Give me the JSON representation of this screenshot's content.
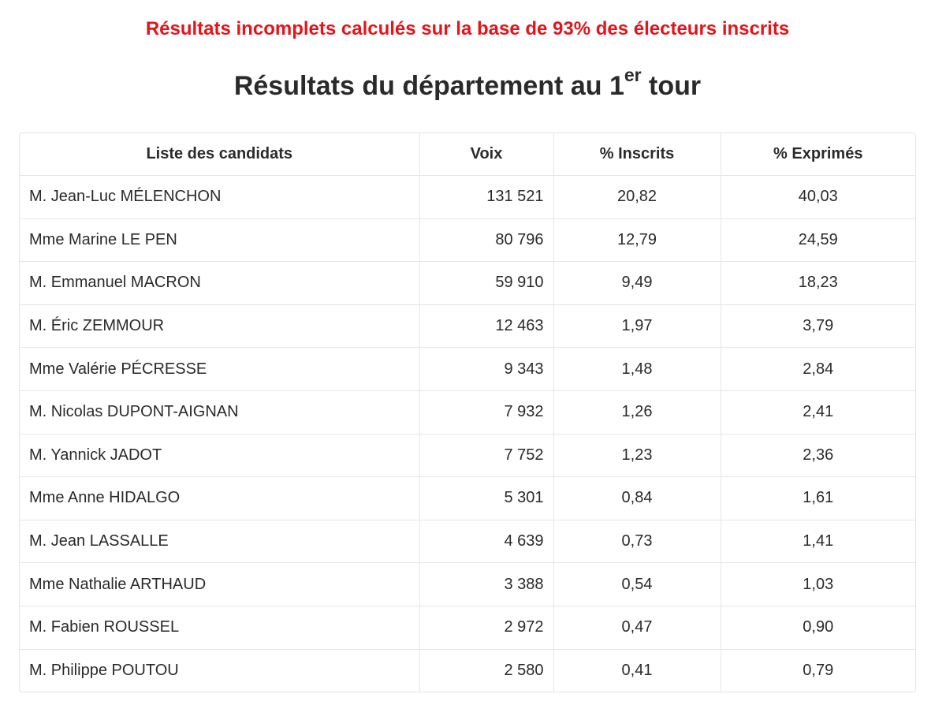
{
  "notice": "Résultats incomplets calculés sur la base de 93% des électeurs inscrits",
  "title": {
    "main": "Résultats du département au 1",
    "sup": "er",
    "end": " tour"
  },
  "table": {
    "headers": {
      "candidate": "Liste des candidats",
      "votes": "Voix",
      "pct_registered": "% Inscrits",
      "pct_cast": "% Exprimés"
    },
    "rows": [
      {
        "name": "M. Jean-Luc MÉLENCHON",
        "votes": "131 521",
        "pct_registered": "20,82",
        "pct_cast": "40,03"
      },
      {
        "name": "Mme Marine LE PEN",
        "votes": "80 796",
        "pct_registered": "12,79",
        "pct_cast": "24,59"
      },
      {
        "name": "M. Emmanuel MACRON",
        "votes": "59 910",
        "pct_registered": "9,49",
        "pct_cast": "18,23"
      },
      {
        "name": "M. Éric ZEMMOUR",
        "votes": "12 463",
        "pct_registered": "1,97",
        "pct_cast": "3,79"
      },
      {
        "name": "Mme Valérie PÉCRESSE",
        "votes": "9 343",
        "pct_registered": "1,48",
        "pct_cast": "2,84"
      },
      {
        "name": "M. Nicolas DUPONT-AIGNAN",
        "votes": "7 932",
        "pct_registered": "1,26",
        "pct_cast": "2,41"
      },
      {
        "name": "M. Yannick JADOT",
        "votes": "7 752",
        "pct_registered": "1,23",
        "pct_cast": "2,36"
      },
      {
        "name": "Mme Anne HIDALGO",
        "votes": "5 301",
        "pct_registered": "0,84",
        "pct_cast": "1,61"
      },
      {
        "name": "M. Jean LASSALLE",
        "votes": "4 639",
        "pct_registered": "0,73",
        "pct_cast": "1,41"
      },
      {
        "name": "Mme Nathalie ARTHAUD",
        "votes": "3 388",
        "pct_registered": "0,54",
        "pct_cast": "1,03"
      },
      {
        "name": "M. Fabien ROUSSEL",
        "votes": "2 972",
        "pct_registered": "0,47",
        "pct_cast": "0,90"
      },
      {
        "name": "M. Philippe POUTOU",
        "votes": "2 580",
        "pct_registered": "0,41",
        "pct_cast": "0,79"
      }
    ]
  },
  "colors": {
    "notice": "#e3151a",
    "text": "#2a2a2a",
    "border": "#e6e6e6"
  }
}
